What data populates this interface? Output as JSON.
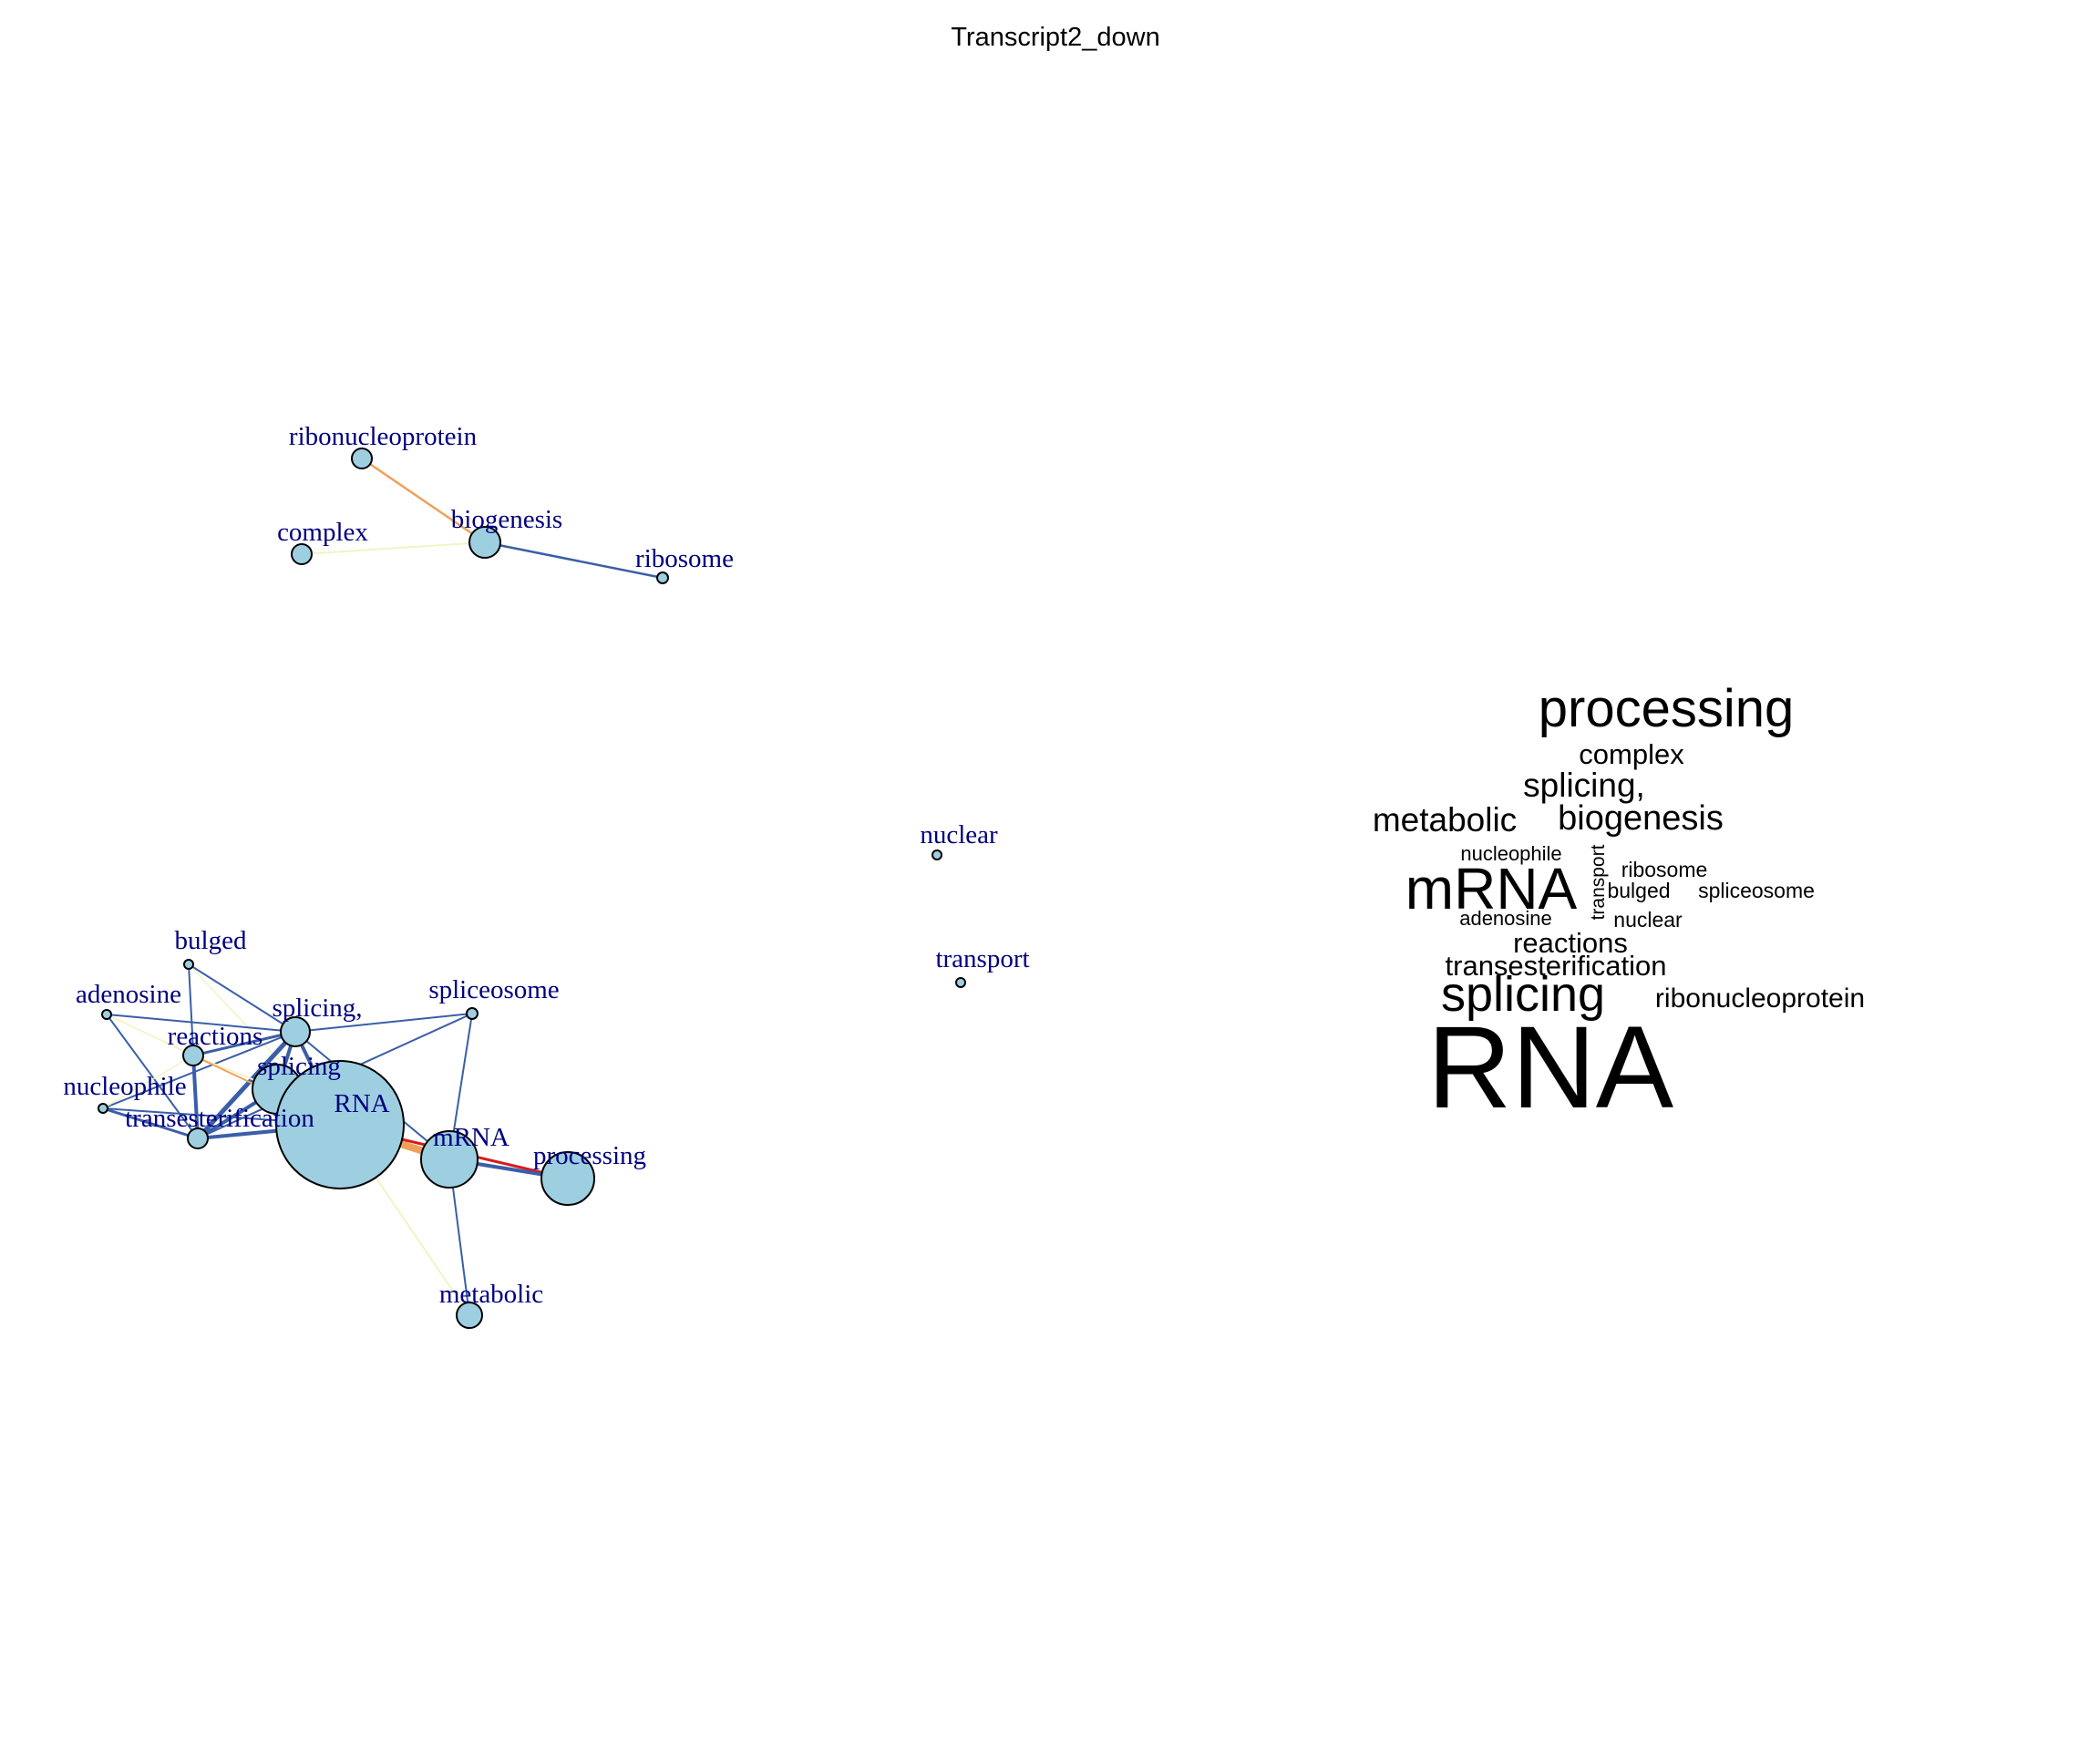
{
  "title": "Transcript2_down",
  "colors": {
    "node_fill": "#9ecfe0",
    "node_stroke": "#000000",
    "label": "#000080",
    "edge_blue": "#3a5fa8",
    "edge_yellow": "#f3f3c4",
    "edge_orange": "#f0a05a",
    "edge_red": "#d7191c",
    "cloud_text": "#000000"
  },
  "network": {
    "nodes": [
      {
        "id": "ribonucleoprotein",
        "label": "ribonucleoprotein"
      },
      {
        "id": "complex",
        "label": "complex"
      },
      {
        "id": "biogenesis",
        "label": "biogenesis"
      },
      {
        "id": "ribosome",
        "label": "ribosome"
      },
      {
        "id": "nuclear",
        "label": "nuclear"
      },
      {
        "id": "transport",
        "label": "transport"
      },
      {
        "id": "bulged",
        "label": "bulged"
      },
      {
        "id": "adenosine",
        "label": "adenosine"
      },
      {
        "id": "splicing_comma",
        "label": "splicing,"
      },
      {
        "id": "spliceosome",
        "label": "spliceosome"
      },
      {
        "id": "reactions",
        "label": "reactions"
      },
      {
        "id": "splicing",
        "label": "splicing"
      },
      {
        "id": "RNA",
        "label": "RNA"
      },
      {
        "id": "nucleophile",
        "label": "nucleophile"
      },
      {
        "id": "transesterification",
        "label": "transesterification"
      },
      {
        "id": "mRNA",
        "label": "mRNA"
      },
      {
        "id": "processing",
        "label": "processing"
      },
      {
        "id": "metabolic",
        "label": "metabolic"
      }
    ]
  },
  "wordcloud": {
    "words": [
      {
        "text": "processing"
      },
      {
        "text": "complex"
      },
      {
        "text": "splicing,"
      },
      {
        "text": "metabolic"
      },
      {
        "text": "biogenesis"
      },
      {
        "text": "nucleophile"
      },
      {
        "text": "transport"
      },
      {
        "text": "ribosome"
      },
      {
        "text": "mRNA"
      },
      {
        "text": "bulged"
      },
      {
        "text": "spliceosome"
      },
      {
        "text": "adenosine"
      },
      {
        "text": "nuclear"
      },
      {
        "text": "reactions"
      },
      {
        "text": "transesterification"
      },
      {
        "text": "splicing"
      },
      {
        "text": "ribonucleoprotein"
      },
      {
        "text": "RNA"
      }
    ]
  }
}
